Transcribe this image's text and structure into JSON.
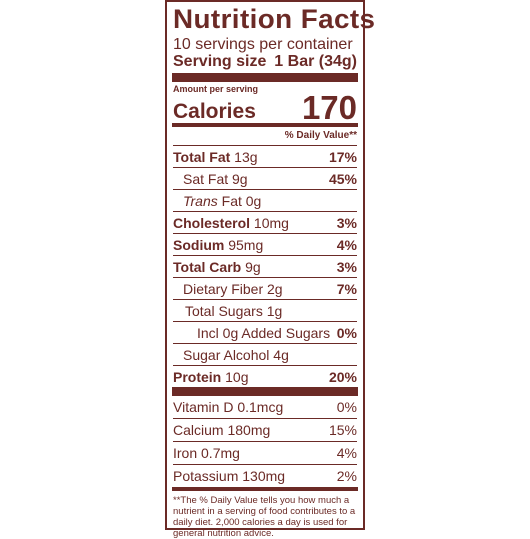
{
  "label": {
    "title": "Nutrition Facts",
    "servings": "10 servings per container",
    "serving_size_label": "Serving size",
    "serving_size_value": "1 Bar (34g)",
    "amount_per_serving": "Amount per serving",
    "calories_label": "Calories",
    "calories_value": "170",
    "dv_header": "% Daily Value**",
    "rows": [
      {
        "bold": "Total Fat",
        "amount": " 13g",
        "pct": "17%"
      },
      {
        "name": "Sat Fat 9g",
        "pct": "45%"
      },
      {
        "italic": "Trans",
        "name": " Fat 0g",
        "pct": ""
      },
      {
        "bold": "Cholesterol",
        "amount": " 10mg",
        "pct": "3%"
      },
      {
        "bold": "Sodium",
        "amount": " 95mg",
        "pct": "4%"
      },
      {
        "bold": "Total Carb",
        "amount": " 9g",
        "pct": "3%"
      },
      {
        "name": "Dietary Fiber 2g",
        "pct": "7%"
      },
      {
        "name": "Total Sugars 1g",
        "pct": ""
      },
      {
        "name": "Incl 0g Added Sugars",
        "pct": "0%"
      },
      {
        "name": "Sugar Alcohol 4g",
        "pct": ""
      },
      {
        "bold": "Protein",
        "amount": " 10g",
        "pct": "20%"
      }
    ],
    "vitamins": [
      {
        "name": "Vitamin D 0.1mcg",
        "pct": "0%"
      },
      {
        "name": "Calcium 180mg",
        "pct": "15%"
      },
      {
        "name": "Iron 0.7mg",
        "pct": "4%"
      },
      {
        "name": "Potassium 130mg",
        "pct": "2%"
      }
    ],
    "footnote": "**The % Daily Value tells you how much a nutrient in a serving of food contributes to a daily diet. 2,000 calories a day is used for general nutrition advice.",
    "color": "#6b2a26"
  }
}
